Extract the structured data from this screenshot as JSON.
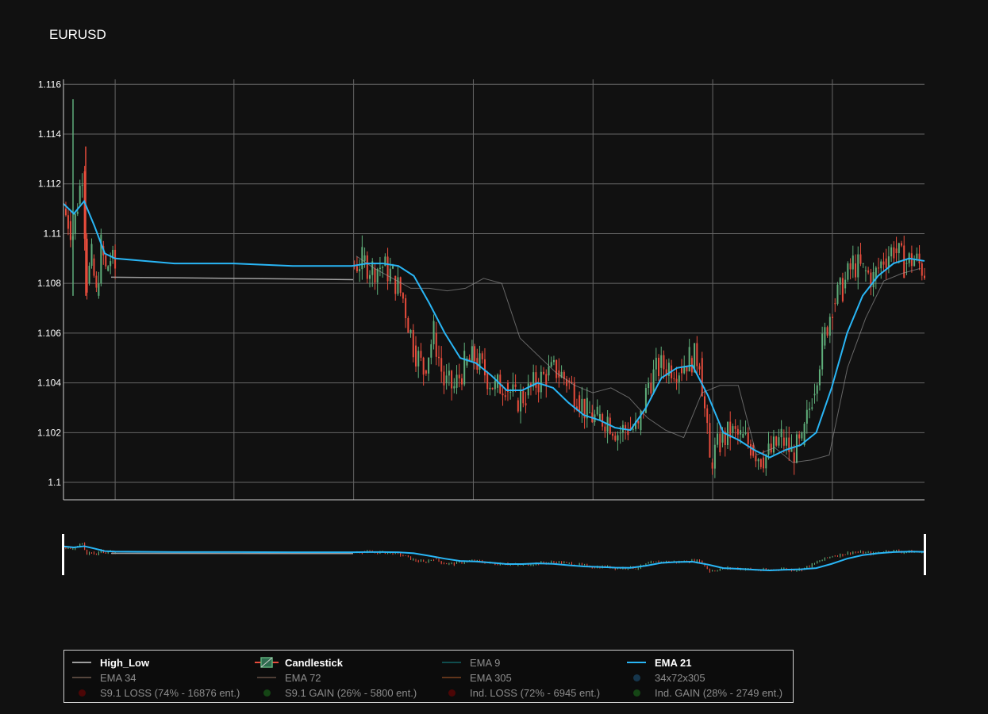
{
  "chart_data": {
    "type": "candlestick",
    "title": "EURUSD",
    "xlabel": "",
    "ylabel": "",
    "ylim": [
      1.0993,
      1.1162
    ],
    "yticks": [
      "1.1",
      "1.102",
      "1.104",
      "1.106",
      "1.108",
      "1.11",
      "1.112",
      "1.114",
      "1.116"
    ],
    "grid": true,
    "legend_position": "bottom",
    "rangeslider": true,
    "session_breaks": [
      0.04,
      0.33,
      0.64,
      0.71,
      0.96
    ],
    "candles_close": [
      1.111,
      1.1105,
      1.11,
      1.1112,
      1.1125,
      1.108,
      1.109,
      1.1075,
      1.1095,
      1.1085,
      1.109,
      1.1086,
      1.1087,
      1.1089,
      1.1086,
      1.1087,
      1.1083,
      1.1074,
      1.1055,
      1.1045,
      1.106,
      1.104,
      1.1038,
      1.1047,
      1.105,
      1.1044,
      1.1038,
      1.104,
      1.1033,
      1.1035,
      1.104,
      1.1043,
      1.1045,
      1.1041,
      1.1035,
      1.1028,
      1.1025,
      1.1026,
      1.102,
      1.1022,
      1.1021,
      1.104,
      1.1046,
      1.1047,
      1.1046,
      1.105,
      1.105,
      1.1008,
      1.1016,
      1.102,
      1.1018,
      1.1015,
      1.101,
      1.1012,
      1.1018,
      1.1012,
      1.1015,
      1.1035,
      1.1055,
      1.1072,
      1.1078,
      1.1088,
      1.1085,
      1.1082,
      1.109,
      1.1094,
      1.1088,
      1.109,
      1.1085
    ],
    "series": [
      {
        "name": "High_Low",
        "values": [
          1.1095,
          1.109,
          1.1086,
          1.1082,
          1.1082,
          1.1081,
          1.1082,
          1.1086,
          1.1084,
          1.1062,
          1.1055,
          1.1048,
          1.1043,
          1.104,
          1.1042,
          1.1038,
          1.103,
          1.1025,
          1.1022,
          1.104,
          1.1043,
          1.1043,
          1.1015,
          1.1018,
          1.1012,
          1.1013,
          1.1015,
          1.105,
          1.107,
          1.1085,
          1.1088,
          1.109
        ]
      },
      {
        "name": "EMA 21",
        "values": [
          1.1112,
          1.1108,
          1.1113,
          1.1103,
          1.1092,
          1.109,
          1.1088,
          1.1088,
          1.1087,
          1.1087,
          1.1088,
          1.1088,
          1.1087,
          1.1083,
          1.1072,
          1.106,
          1.105,
          1.1048,
          1.1043,
          1.1037,
          1.1037,
          1.104,
          1.1038,
          1.1032,
          1.1027,
          1.1025,
          1.1022,
          1.1021,
          1.103,
          1.1042,
          1.1046,
          1.1047,
          1.1035,
          1.102,
          1.1017,
          1.1013,
          1.101,
          1.1013,
          1.1015,
          1.102,
          1.1038,
          1.106,
          1.1075,
          1.1083,
          1.1088,
          1.109,
          1.1089
        ]
      }
    ]
  },
  "legend": {
    "items": [
      {
        "label": "High_Low",
        "color": "#9e9e9e",
        "symbol": "line",
        "active": true
      },
      {
        "label": "Candlestick",
        "color": "#e74c3c",
        "symbol": "candle",
        "active": true
      },
      {
        "label": "EMA 9",
        "color": "#138d90",
        "symbol": "line",
        "active": false
      },
      {
        "label": "EMA 21",
        "color": "#29b6f6",
        "symbol": "line",
        "active": true
      },
      {
        "label": "EMA 34",
        "color": "#9e7f6e",
        "symbol": "line",
        "active": false
      },
      {
        "label": "EMA 72",
        "color": "#8f6f5f",
        "symbol": "line",
        "active": false
      },
      {
        "label": "EMA 305",
        "color": "#b35d2a",
        "symbol": "line",
        "active": false
      },
      {
        "label": "34x72x305",
        "color": "#1f5f8b",
        "symbol": "dot",
        "active": false
      },
      {
        "label": "S9.1 LOSS (74% - 16876 ent.)",
        "color": "#8b0000",
        "symbol": "dot",
        "active": false
      },
      {
        "label": "S9.1 GAIN (26% - 5800 ent.)",
        "color": "#1e7d1e",
        "symbol": "dot",
        "active": false
      },
      {
        "label": "Ind. LOSS (72% - 6945 ent.)",
        "color": "#8b0000",
        "symbol": "dot",
        "active": false
      },
      {
        "label": "Ind. GAIN (28% - 2749 ent.)",
        "color": "#1e7d1e",
        "symbol": "dot",
        "active": false
      }
    ]
  },
  "colors": {
    "background": "#111111",
    "grid": "#666666",
    "up": "#5fae7a",
    "down": "#e74c3c",
    "ema21": "#29b6f6",
    "highlow": "#9e9e9e"
  }
}
